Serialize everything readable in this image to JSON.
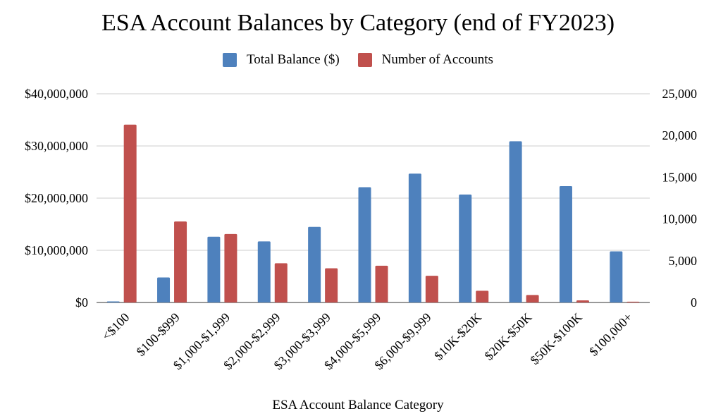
{
  "colors": {
    "total_balance": "#4e81bd",
    "num_accounts": "#c0504d",
    "grid": "#cccccc",
    "axis": "#333333"
  },
  "chart_data": {
    "type": "bar",
    "title": "ESA Account Balances by Category (end of FY2023)",
    "subtitle": "",
    "xlabel": "ESA Account Balance Category",
    "ylabel": "",
    "y2label": "",
    "legend_position": "top",
    "grid": true,
    "categories": [
      "<$100",
      "$100-$999",
      "$1,000-$1,999",
      "$2,000-$2,999",
      "$3,000-$3,999",
      "$4,000-$5,999",
      "$6,000-$9,999",
      "$10K-$20K",
      "$20K-$50K",
      "$50K-$100K",
      "$100,000+"
    ],
    "series": [
      {
        "name": "Total Balance ($)",
        "axis": "left",
        "values": [
          200000,
          4800000,
          12600000,
          11700000,
          14500000,
          22100000,
          24700000,
          20700000,
          30900000,
          22300000,
          9800000
        ]
      },
      {
        "name": "Number of Accounts",
        "axis": "right",
        "values": [
          21300,
          9700,
          8200,
          4700,
          4100,
          4400,
          3200,
          1400,
          900,
          250,
          100
        ]
      }
    ],
    "ylim": [
      0,
      40000000
    ],
    "y2lim": [
      0,
      25000
    ],
    "yticks": [
      "$0",
      "$10,000,000",
      "$20,000,000",
      "$30,000,000",
      "$40,000,000"
    ],
    "y2ticks": [
      "0",
      "5,000",
      "10,000",
      "15,000",
      "20,000",
      "25,000"
    ]
  }
}
